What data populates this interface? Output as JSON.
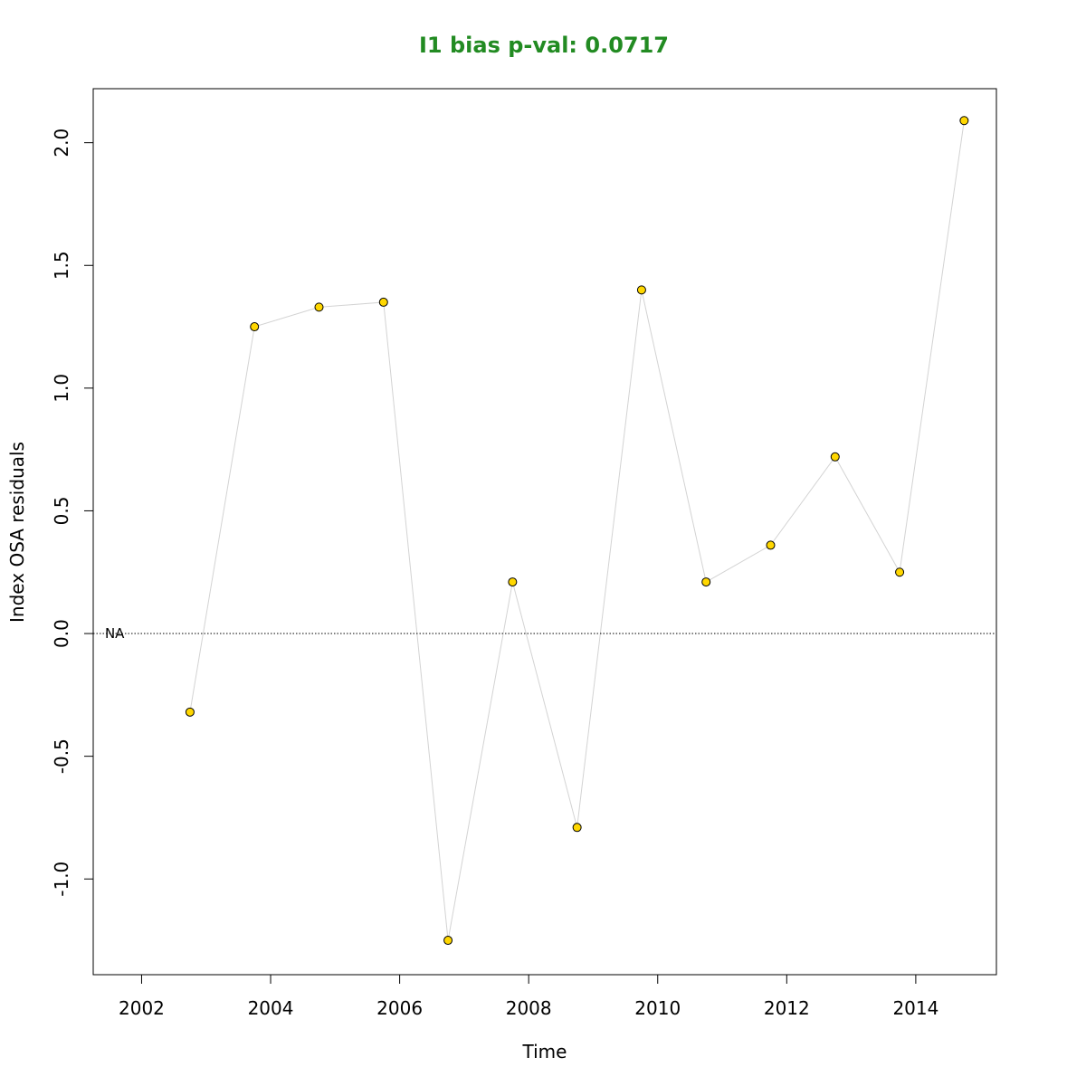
{
  "chart_data": {
    "type": "scatter",
    "title": "I1 bias p-val: 0.0717",
    "title_color": "#228B22",
    "xlabel": "Time",
    "ylabel": "Index OSA residuals",
    "xlim": [
      2001.25,
      2015.25
    ],
    "ylim": [
      -1.39,
      2.22
    ],
    "x_ticks": [
      2002,
      2004,
      2006,
      2008,
      2010,
      2012,
      2014
    ],
    "y_ticks": [
      -1.0,
      -0.5,
      0.0,
      0.5,
      1.0,
      1.5,
      2.0
    ],
    "x_tick_labels": [
      "2002",
      "2004",
      "2006",
      "2008",
      "2010",
      "2012",
      "2014"
    ],
    "y_tick_labels": [
      "-1.0",
      "-0.5",
      "0.0",
      "0.5",
      "1.0",
      "1.5",
      "2.0"
    ],
    "reference_line": {
      "y": 0,
      "style": "dotted"
    },
    "annotation": {
      "text": "NA",
      "x": 2001.6,
      "y": 0
    },
    "point_fill": "#FFD700",
    "point_stroke": "#000000",
    "line_color": "#D3D3D3",
    "grid": false,
    "series": [
      {
        "x": [
          2002.75,
          2003.75,
          2004.75,
          2005.75,
          2006.75,
          2007.75,
          2008.75,
          2009.75,
          2010.75,
          2011.75,
          2012.75,
          2013.75,
          2014.75
        ],
        "y": [
          -0.32,
          1.25,
          1.33,
          1.35,
          -1.25,
          0.21,
          -0.79,
          1.4,
          0.21,
          0.36,
          0.72,
          0.25,
          2.09
        ]
      }
    ]
  }
}
